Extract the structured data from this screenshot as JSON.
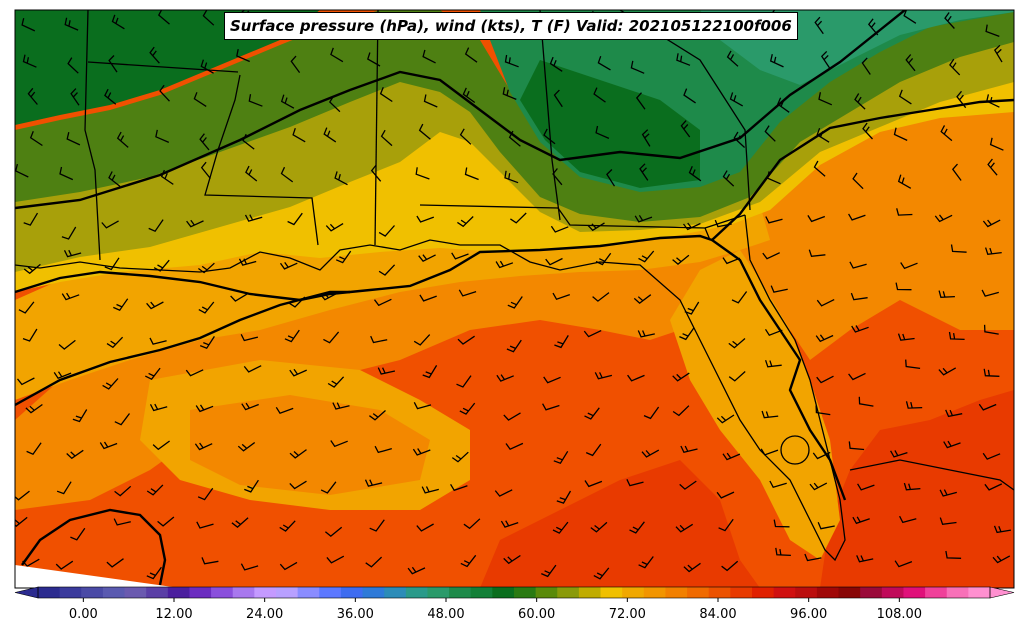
{
  "title": "Surface pressure (hPa), wind (kts), T (F) Valid: 202105122100f006",
  "colorbar": {
    "min": -6,
    "max": 120,
    "step": 3,
    "extend": "both",
    "tick_labels": [
      "0.00",
      "12.00",
      "24.00",
      "36.00",
      "48.00",
      "60.00",
      "72.00",
      "84.00",
      "96.00",
      "108.00"
    ],
    "colors": [
      "#2b2b8f",
      "#3a3a9c",
      "#4a4aa6",
      "#5a5ab0",
      "#6a5aaf",
      "#5a3fa6",
      "#4b1f9e",
      "#6b2cc0",
      "#8a4fdc",
      "#a878ee",
      "#c49aff",
      "#b8a0ff",
      "#8a8cff",
      "#5c78ff",
      "#3e6cf0",
      "#2e7ad8",
      "#2c8cb8",
      "#2a9a8a",
      "#2a9a6a",
      "#1e8a4a",
      "#138038",
      "#0a6e1e",
      "#2a7a12",
      "#5a8a0a",
      "#8a9a0a",
      "#c0ac00",
      "#f0c000",
      "#f0a800",
      "#f29500",
      "#f28000",
      "#f06a00",
      "#ec5200",
      "#e83a00",
      "#e02000",
      "#d01010",
      "#bb0e0e",
      "#a00808",
      "#880606",
      "#9a0a3a",
      "#c00a5a",
      "#e0107a",
      "#f0409a",
      "#f870b8",
      "#ff90d0"
    ]
  },
  "map_colors": {
    "deep_green": "#0a6e1e",
    "green": "#1e8a4a",
    "olive_green": "#4e8012",
    "olive": "#a8a00a",
    "yellow": "#f0c000",
    "light_orange": "#f2a400",
    "orange": "#f38800",
    "dark_orange": "#f05000",
    "red_orange": "#e83a00",
    "isobar": "#000000"
  }
}
